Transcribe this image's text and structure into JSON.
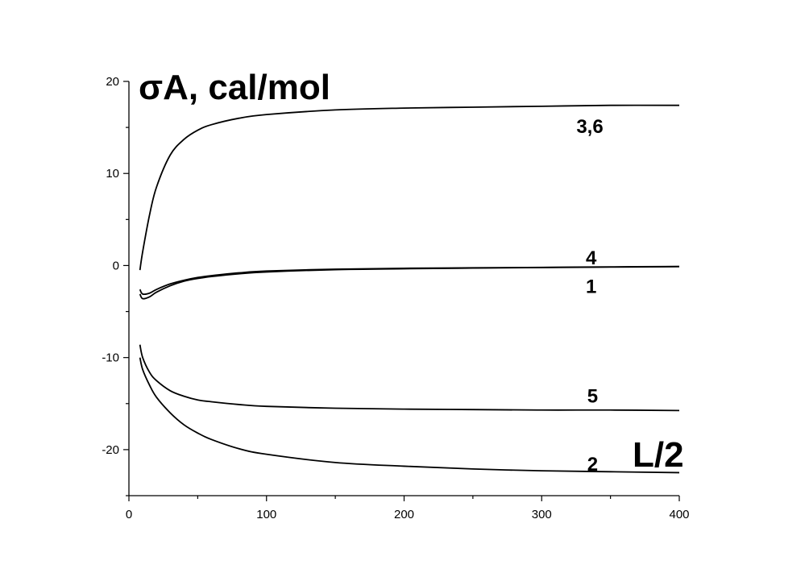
{
  "chart_data": {
    "type": "line",
    "title": "",
    "ylabel": "σA, cal/mol",
    "xlabel": "L/2",
    "xlim": [
      0,
      400
    ],
    "ylim": [
      -25,
      20
    ],
    "x_ticks": [
      "0",
      "100",
      "200",
      "300",
      "400"
    ],
    "y_ticks": [
      "-20",
      "-10",
      "0",
      "10",
      "20"
    ],
    "grid": false,
    "series": [
      {
        "name": "3,6",
        "x": [
          8,
          10,
          15,
          20,
          30,
          40,
          50,
          60,
          80,
          100,
          150,
          200,
          250,
          300,
          350,
          400
        ],
        "values": [
          -0.5,
          1.5,
          5.5,
          8.5,
          12.0,
          13.7,
          14.7,
          15.3,
          16.0,
          16.4,
          16.9,
          17.1,
          17.2,
          17.3,
          17.4,
          17.4
        ]
      },
      {
        "name": "4",
        "x": [
          8,
          10,
          15,
          20,
          30,
          40,
          50,
          60,
          80,
          100,
          150,
          200,
          250,
          300,
          350,
          400
        ],
        "values": [
          -2.6,
          -3.1,
          -3.0,
          -2.6,
          -2.0,
          -1.6,
          -1.3,
          -1.1,
          -0.8,
          -0.6,
          -0.4,
          -0.3,
          -0.25,
          -0.2,
          -0.15,
          -0.1
        ]
      },
      {
        "name": "1",
        "x": [
          8,
          10,
          15,
          20,
          30,
          40,
          50,
          60,
          80,
          100,
          150,
          200,
          250,
          300,
          350,
          400
        ],
        "values": [
          -3.1,
          -3.6,
          -3.4,
          -2.9,
          -2.2,
          -1.7,
          -1.4,
          -1.2,
          -0.9,
          -0.7,
          -0.45,
          -0.35,
          -0.28,
          -0.22,
          -0.17,
          -0.12
        ]
      },
      {
        "name": "5",
        "x": [
          8,
          10,
          15,
          20,
          30,
          40,
          50,
          60,
          80,
          100,
          150,
          200,
          250,
          300,
          350,
          400
        ],
        "values": [
          -8.6,
          -10.0,
          -11.6,
          -12.5,
          -13.6,
          -14.2,
          -14.6,
          -14.8,
          -15.1,
          -15.3,
          -15.5,
          -15.6,
          -15.65,
          -15.7,
          -15.7,
          -15.75
        ]
      },
      {
        "name": "2",
        "x": [
          8,
          10,
          15,
          20,
          30,
          40,
          50,
          60,
          80,
          100,
          150,
          200,
          250,
          300,
          350,
          400
        ],
        "values": [
          -10.0,
          -11.3,
          -13.0,
          -14.3,
          -16.0,
          -17.3,
          -18.2,
          -18.9,
          -19.9,
          -20.5,
          -21.4,
          -21.8,
          -22.1,
          -22.3,
          -22.4,
          -22.5
        ]
      }
    ],
    "curve_labels": [
      {
        "text": "3,6",
        "x": 335,
        "y": 15.2
      },
      {
        "text": "4",
        "x": 336,
        "y": 0.9
      },
      {
        "text": "1",
        "x": 336,
        "y": -2.2
      },
      {
        "text": "5",
        "x": 337,
        "y": -14.1
      },
      {
        "text": "2",
        "x": 337,
        "y": -21.5
      }
    ]
  }
}
